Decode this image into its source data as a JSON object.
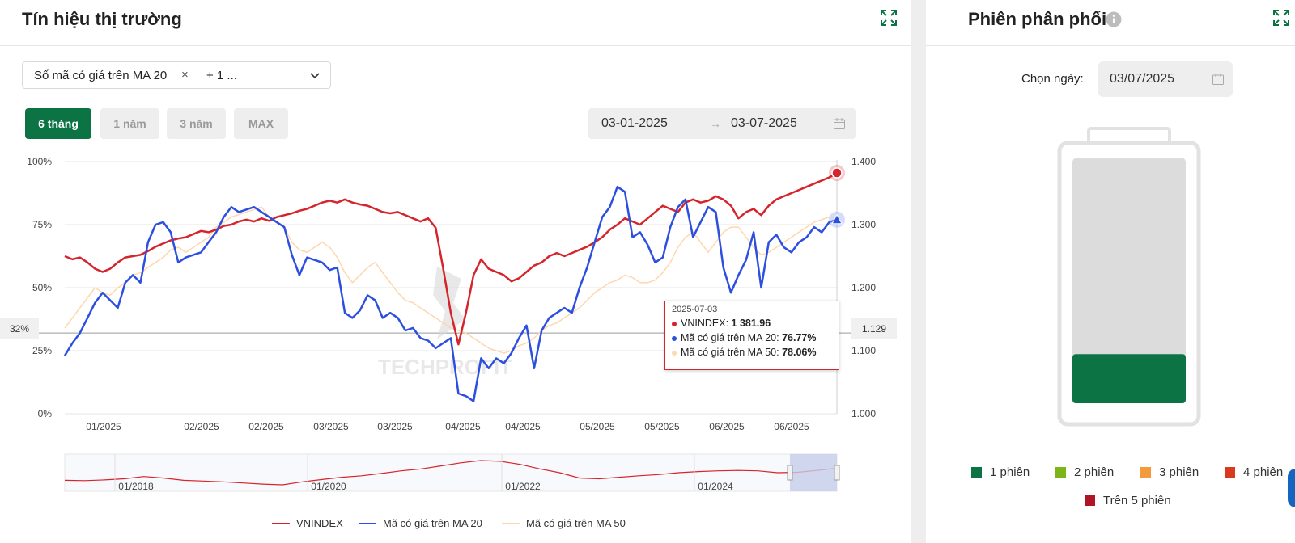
{
  "left_panel": {
    "title": "Tín hiệu thị trường",
    "select": {
      "tag_label": "Số mã có giá trên MA 20",
      "tag_remove": "×",
      "more": "+ 1 ..."
    },
    "range_buttons": [
      {
        "label": "6 tháng",
        "active": true
      },
      {
        "label": "1 năm",
        "active": false
      },
      {
        "label": "3 năm",
        "active": false
      },
      {
        "label": "MAX",
        "active": false
      }
    ],
    "date_from": "03-01-2025",
    "date_arrow": "→",
    "date_to": "03-07-2025",
    "watermark": "TECHPROFIT",
    "crosshair_left_label": "32%",
    "crosshair_right_label": "1.129",
    "tooltip": {
      "date": "2025-07-03",
      "rows": [
        {
          "label": "VNINDEX: ",
          "value": "1 381.96",
          "color": "#d6242c"
        },
        {
          "label": "Mã có giá trên MA 20: ",
          "value": "76.77%",
          "color": "#2c4fe0"
        },
        {
          "label": "Mã có giá trên MA 50: ",
          "value": "78.06%",
          "color": "#ffd9b3"
        }
      ]
    },
    "navigator_labels": [
      "01/2018",
      "01/2020",
      "01/2022",
      "01/2024"
    ],
    "legend": [
      {
        "label": "VNINDEX",
        "color": "#d6242c"
      },
      {
        "label": "Mã có giá trên MA 20",
        "color": "#2c4fe0"
      },
      {
        "label": "Mã có giá trên MA 50",
        "color": "#ffd6ad"
      }
    ]
  },
  "right_panel": {
    "title": "Phiên phân phối",
    "date_label": "Chọn ngày:",
    "date_value": "03/07/2025",
    "battery_fill_fraction": 0.2,
    "battery_fill_color": "#0b7344",
    "legend": [
      {
        "label": "1 phiên",
        "color": "#0b7344"
      },
      {
        "label": "2 phiên",
        "color": "#7cb518"
      },
      {
        "label": "3 phiên",
        "color": "#f59a3c"
      },
      {
        "label": "4 phiên",
        "color": "#d9391c"
      },
      {
        "label": "Trên 5 phiên",
        "color": "#b01428"
      }
    ]
  },
  "chart_data": {
    "type": "line",
    "left_axis": {
      "ticks": [
        "0%",
        "25%",
        "50%",
        "75%",
        "100%"
      ],
      "range": [
        0,
        100
      ]
    },
    "right_axis": {
      "ticks": [
        "1.000",
        "1.100",
        "1.200",
        "1.300",
        "1.400"
      ],
      "range": [
        1000,
        1400
      ]
    },
    "x_ticks": [
      "01/2025",
      "02/2025",
      "02/2025",
      "03/2025",
      "03/2025",
      "04/2025",
      "04/2025",
      "05/2025",
      "05/2025",
      "06/2025",
      "06/2025"
    ],
    "series": [
      {
        "name": "VNINDEX",
        "axis": "right",
        "color": "#d6242c",
        "values": [
          1250,
          1245,
          1248,
          1240,
          1230,
          1225,
          1230,
          1240,
          1248,
          1250,
          1252,
          1258,
          1265,
          1270,
          1275,
          1278,
          1280,
          1285,
          1290,
          1288,
          1292,
          1298,
          1300,
          1305,
          1308,
          1305,
          1310,
          1306,
          1312,
          1315,
          1318,
          1322,
          1325,
          1330,
          1335,
          1338,
          1335,
          1340,
          1335,
          1332,
          1330,
          1325,
          1320,
          1318,
          1320,
          1315,
          1310,
          1305,
          1310,
          1295,
          1230,
          1160,
          1110,
          1160,
          1220,
          1245,
          1230,
          1225,
          1220,
          1210,
          1215,
          1225,
          1235,
          1240,
          1250,
          1255,
          1250,
          1255,
          1260,
          1265,
          1272,
          1280,
          1292,
          1300,
          1310,
          1305,
          1300,
          1310,
          1320,
          1330,
          1325,
          1320,
          1335,
          1340,
          1335,
          1338,
          1345,
          1340,
          1330,
          1310,
          1320,
          1325,
          1315,
          1330,
          1340,
          1345,
          1350,
          1355,
          1360,
          1365,
          1370,
          1375,
          1382
        ]
      },
      {
        "name": "Mã có giá trên MA 20",
        "axis": "left",
        "color": "#2c4fe0",
        "values": [
          23,
          28,
          32,
          38,
          44,
          48,
          45,
          42,
          52,
          55,
          52,
          68,
          75,
          76,
          72,
          60,
          62,
          63,
          64,
          68,
          72,
          78,
          82,
          80,
          81,
          82,
          80,
          78,
          76,
          74,
          63,
          55,
          62,
          61,
          60,
          57,
          58,
          40,
          38,
          41,
          47,
          45,
          38,
          40,
          38,
          33,
          34,
          30,
          29,
          26,
          28,
          30,
          8,
          7,
          5,
          22,
          18,
          22,
          20,
          24,
          30,
          35,
          18,
          33,
          38,
          40,
          42,
          40,
          50,
          58,
          68,
          78,
          82,
          90,
          88,
          70,
          72,
          67,
          60,
          62,
          74,
          82,
          85,
          70,
          76,
          82,
          80,
          58,
          48,
          55,
          61,
          72,
          50,
          68,
          71,
          66,
          64,
          68,
          70,
          74,
          72,
          76,
          77
        ]
      },
      {
        "name": "Mã có giá trên MA 50",
        "axis": "left",
        "color": "#ffd6ad",
        "values": [
          34,
          38,
          42,
          46,
          50,
          48,
          47,
          50,
          52,
          55,
          56,
          58,
          60,
          62,
          65,
          66,
          64,
          66,
          68,
          70,
          74,
          76,
          78,
          79,
          80,
          81,
          82,
          78,
          76,
          74,
          68,
          65,
          64,
          66,
          68,
          66,
          62,
          56,
          52,
          55,
          58,
          60,
          56,
          52,
          48,
          45,
          44,
          42,
          40,
          38,
          36,
          34,
          33,
          32,
          30,
          28,
          26,
          25,
          24,
          25,
          27,
          28,
          30,
          33,
          35,
          36,
          38,
          40,
          42,
          45,
          48,
          50,
          52,
          53,
          55,
          54,
          52,
          52,
          53,
          56,
          60,
          66,
          70,
          72,
          68,
          64,
          68,
          72,
          74,
          74,
          70,
          66,
          63,
          64,
          66,
          68,
          70,
          72,
          74,
          76,
          77,
          78,
          78
        ]
      }
    ],
    "navigator": {
      "x_labels": [
        "01/2018",
        "01/2020",
        "01/2022",
        "01/2024"
      ],
      "values": [
        1000,
        990,
        1010,
        1040,
        1100,
        1060,
        1000,
        980,
        960,
        930,
        900,
        880,
        960,
        1020,
        1080,
        1120,
        1180,
        1250,
        1300,
        1380,
        1460,
        1520,
        1500,
        1420,
        1300,
        1200,
        1060,
        1040,
        1080,
        1120,
        1150,
        1200,
        1230,
        1250,
        1260,
        1250,
        1200,
        1210,
        1260,
        1320
      ]
    },
    "crosshair": {
      "left_value": 32,
      "right_value": 1129
    }
  }
}
